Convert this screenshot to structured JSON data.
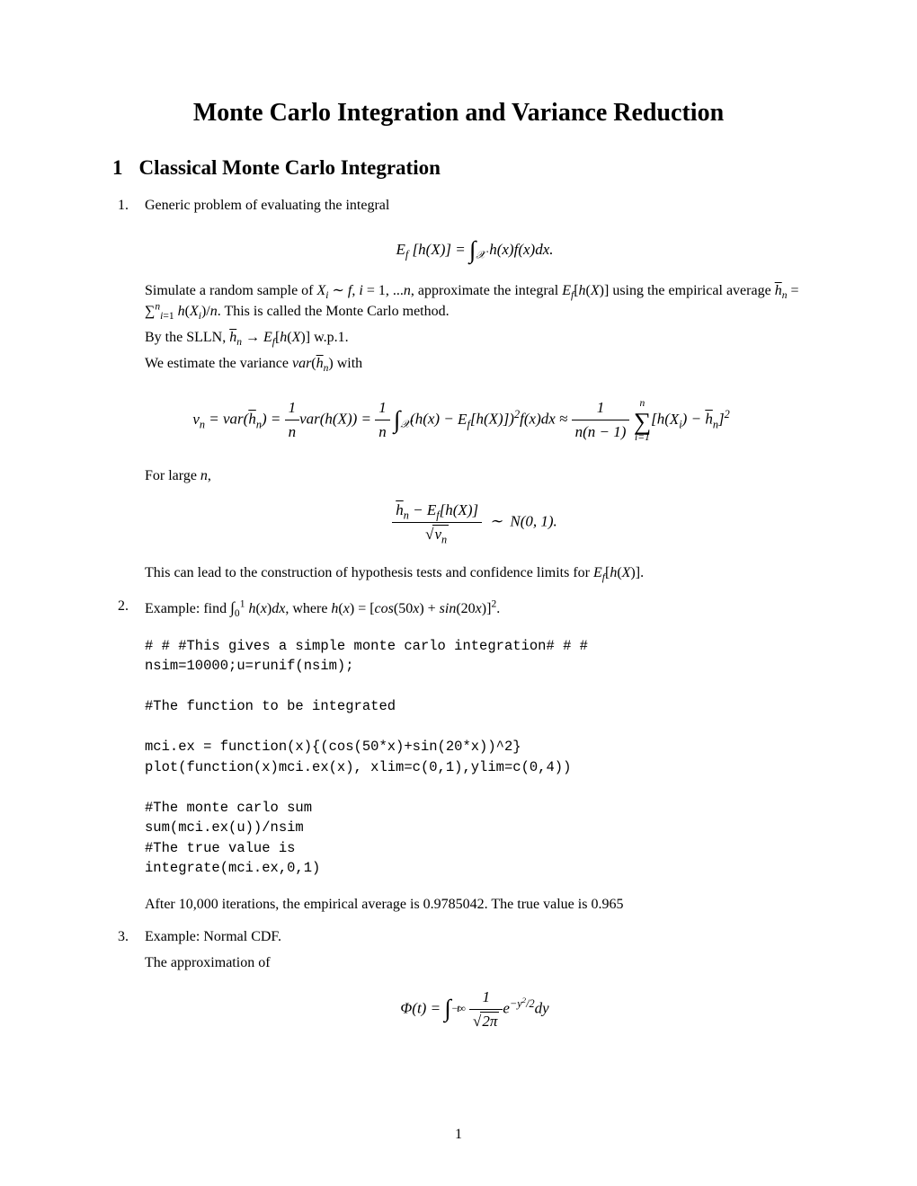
{
  "title": "Monte Carlo Integration and Variance Reduction",
  "section": {
    "number": "1",
    "heading": "Classical Monte Carlo Integration"
  },
  "items": [
    {
      "para1": "Generic problem of evaluating the integral",
      "eq1_lhs": "E",
      "eq1_sub": "f",
      "eq1_arg": "[h(X)] = ",
      "eq1_int_sub": "𝒳",
      "eq1_rhs": " h(x)f(x)dx.",
      "para2a": "Simulate a random sample of ",
      "para2b": ", approximate the integral ",
      "para2c": " using the empirical average ",
      "para2d": ". This is called the Monte Carlo method.",
      "sample": "Xᵢ ∼ f, i = 1, ...n",
      "Efh": "E_f[h(X)]",
      "hbar_def": "h̄ₙ = Σⁿᵢ₌₁ h(Xᵢ)/n",
      "para3": "By the SLLN, h̄ₙ → E_f[h(X)] w.p.1.",
      "para4": "We estimate the variance var(h̄ₙ) with",
      "eq2": "vₙ = var(h̄ₙ) = (1/n)var(h(X)) = (1/n)∫_𝒳 (h(x) − E_f[h(X)])² f(x)dx ≈ 1/(n(n−1)) Σⁿᵢ₌₁ [h(Xᵢ) − h̄ₙ]²",
      "para5": "For large n,",
      "eq3": "(h̄ₙ − E_f[h(X)]) / √vₙ  ∼  N(0, 1).",
      "para6": "This can lead to the construction of hypothesis tests and confidence limits for E_f[h(X)]."
    },
    {
      "intro": "Example: find ∫₀¹ h(x)dx, where h(x) = [cos(50x) + sin(20x)]².",
      "code": "# # #This gives a simple monte carlo integration# # #\nnsim=10000;u=runif(nsim);\n\n#The function to be integrated\n\nmci.ex = function(x){(cos(50*x)+sin(20*x))^2}\nplot(function(x)mci.ex(x), xlim=c(0,1),ylim=c(0,4))\n\n#The monte carlo sum\nsum(mci.ex(u))/nsim\n#The true value is\nintegrate(mci.ex,0,1)",
      "result": "After 10,000 iterations, the empirical average is 0.9785042. The true value is 0.965"
    },
    {
      "intro": "Example: Normal CDF.",
      "para": "The approximation of",
      "eq": "Φ(t) = ∫ᵗ₋∞ (1/√(2π)) e^{−y²/2} dy"
    }
  ],
  "page_number": "1",
  "colors": {
    "text": "#000000",
    "background": "#ffffff"
  },
  "fonts": {
    "body": "Times New Roman",
    "code": "Courier New",
    "title_size_pt": 21,
    "section_size_pt": 17,
    "body_size_pt": 12,
    "code_size_pt": 11
  }
}
